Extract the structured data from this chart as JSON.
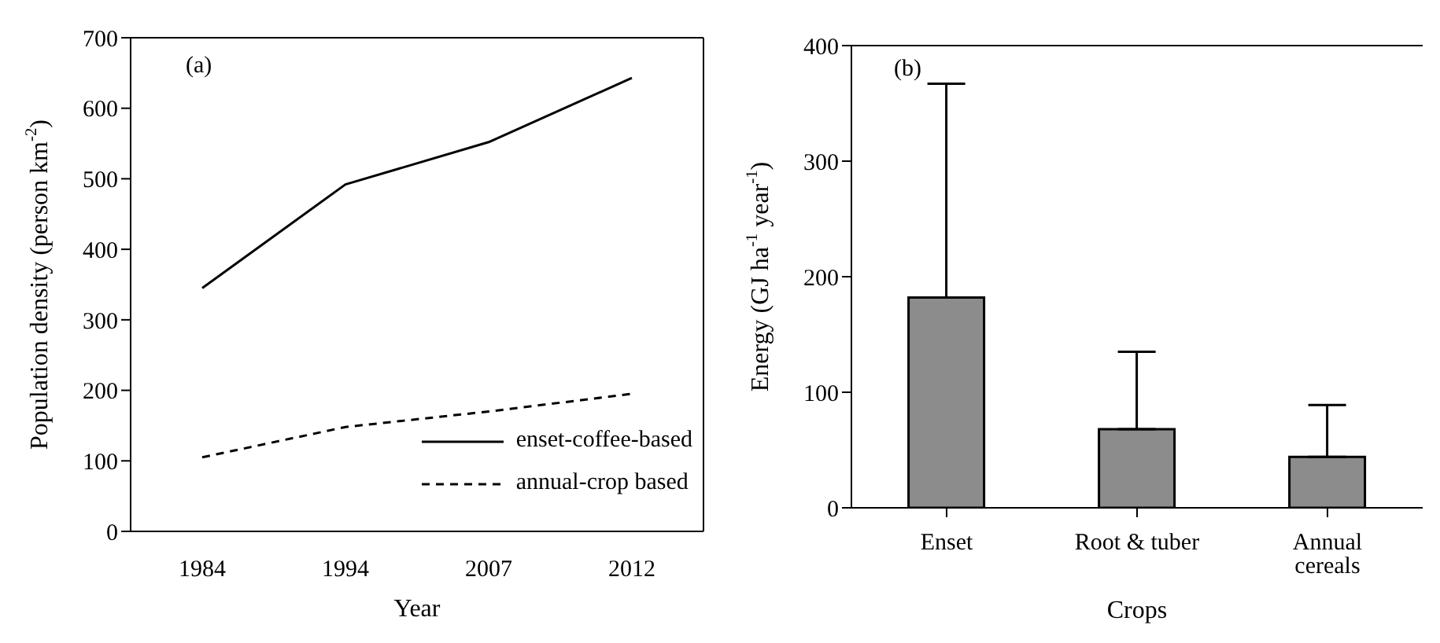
{
  "chart_data": [
    {
      "type": "line",
      "xlabel": "Year",
      "ylabel": "Population density (person km$^{-2}$)",
      "annotations": [
        "(a)"
      ],
      "categories": [
        "1984",
        "1994",
        "2007",
        "2012"
      ],
      "series": [
        {
          "name": "enset-coffee-based",
          "color": "#000000",
          "line_style": "solid",
          "values": [
            345,
            492,
            552,
            643
          ]
        },
        {
          "name": "annual-crop based",
          "color": "#000000",
          "line_style": "dashed",
          "values": [
            105,
            148,
            170,
            195
          ]
        }
      ],
      "ylim": [
        0,
        700
      ],
      "yticks": [
        0,
        100,
        200,
        300,
        400,
        500,
        600,
        700
      ],
      "legend": "bottom right",
      "marker": "none",
      "grid": false
    },
    {
      "type": "bar",
      "xlabel": "Crops",
      "ylabel": "Energy (GJ ha$^{-1}$ year$^{-1}$)",
      "annotations": [
        "(b)"
      ],
      "categories": [
        "Enset",
        "Root & tuber",
        "Annual cereals"
      ],
      "values": [
        182,
        68,
        44
      ],
      "errors": [
        [
          182,
          367
        ],
        [
          68,
          135
        ],
        [
          44,
          89
        ]
      ],
      "color": "#8c8c8c",
      "ylim": [
        0,
        400
      ],
      "yticks": [
        0,
        100,
        200,
        300,
        400
      ],
      "grid": false
    }
  ]
}
